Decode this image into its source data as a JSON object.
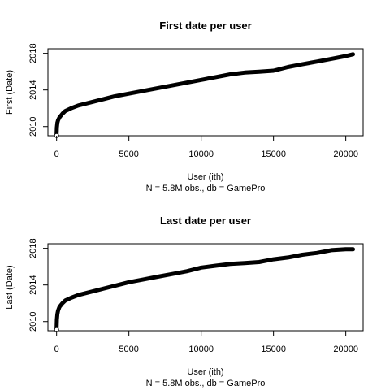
{
  "chart_data": [
    {
      "type": "scatter",
      "title": "First date per user",
      "xlabel": "User (ith)",
      "ylabel": "First (Date)",
      "subtitle": "N = 5.8M obs., db = GamePro",
      "xlim": [
        -600,
        21200
      ],
      "ylim": [
        2009.0,
        2018.5
      ],
      "xticks": [
        0,
        5000,
        10000,
        15000,
        20000
      ],
      "xtick_labels": [
        "0",
        "5000",
        "10000",
        "15000",
        "20000"
      ],
      "yticks": [
        2010,
        2014,
        2018
      ],
      "ytick_labels": [
        "2010",
        "2014",
        "2018"
      ],
      "grid": false,
      "x": [
        0,
        20,
        50,
        100,
        200,
        400,
        600,
        1000,
        1500,
        2000,
        3000,
        4000,
        5000,
        6000,
        7000,
        8000,
        9000,
        10000,
        11000,
        12000,
        13000,
        14000,
        15000,
        16000,
        17000,
        18000,
        19000,
        20000,
        20500
      ],
      "y": [
        2009.2,
        2009.9,
        2010.4,
        2010.7,
        2011.0,
        2011.4,
        2011.7,
        2012.0,
        2012.3,
        2012.5,
        2012.9,
        2013.3,
        2013.6,
        2013.9,
        2014.2,
        2014.5,
        2014.8,
        2015.1,
        2015.4,
        2015.7,
        2015.9,
        2016.0,
        2016.1,
        2016.5,
        2016.8,
        2017.1,
        2017.4,
        2017.7,
        2017.9
      ]
    },
    {
      "type": "scatter",
      "title": "Last date per user",
      "xlabel": "User (ith)",
      "ylabel": "Last (Date)",
      "subtitle": "N = 5.8M obs., db = GamePro",
      "xlim": [
        -600,
        21200
      ],
      "ylim": [
        2009.0,
        2018.5
      ],
      "xticks": [
        0,
        5000,
        10000,
        15000,
        20000
      ],
      "xtick_labels": [
        "0",
        "5000",
        "10000",
        "15000",
        "20000"
      ],
      "yticks": [
        2010,
        2014,
        2018
      ],
      "ytick_labels": [
        "2010",
        "2014",
        "2018"
      ],
      "grid": false,
      "x": [
        0,
        20,
        50,
        100,
        200,
        400,
        600,
        1000,
        1500,
        2000,
        3000,
        4000,
        5000,
        6000,
        7000,
        8000,
        9000,
        10000,
        11000,
        12000,
        13000,
        14000,
        15000,
        16000,
        17000,
        18000,
        19000,
        20000,
        20500
      ],
      "y": [
        2009.3,
        2010.2,
        2010.8,
        2011.2,
        2011.6,
        2012.0,
        2012.3,
        2012.6,
        2012.9,
        2013.1,
        2013.5,
        2013.9,
        2014.3,
        2014.6,
        2014.9,
        2015.2,
        2015.5,
        2015.9,
        2016.1,
        2016.3,
        2016.4,
        2016.5,
        2016.8,
        2017.0,
        2017.3,
        2017.5,
        2017.8,
        2017.9,
        2017.9
      ]
    }
  ]
}
